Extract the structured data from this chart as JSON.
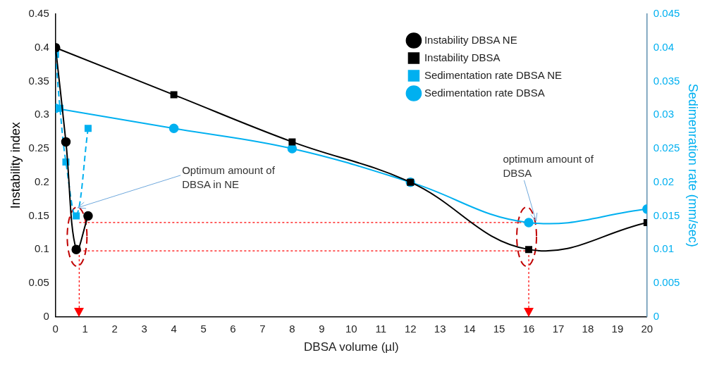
{
  "chart_data": {
    "type": "line",
    "xlabel": "DBSA volume (µl)",
    "ylabel": "Instability index",
    "y2label": "Sedimenration rate (mm/sec)",
    "xlim": [
      0,
      20
    ],
    "xticks": [
      0,
      1,
      2,
      3,
      4,
      5,
      6,
      7,
      8,
      9,
      10,
      11,
      12,
      13,
      14,
      15,
      16,
      17,
      18,
      19,
      20
    ],
    "ylim": [
      0,
      0.45
    ],
    "yticks": [
      0,
      0.05,
      0.1,
      0.15,
      0.2,
      0.25,
      0.3,
      0.35,
      0.4,
      0.45
    ],
    "y2lim": [
      0,
      0.045
    ],
    "y2ticks": [
      0,
      0.005,
      0.01,
      0.015,
      0.02,
      0.025,
      0.03,
      0.035,
      0.04,
      0.045
    ],
    "grid": false,
    "legend": "top right",
    "series": [
      {
        "name": "Instability DBSA NE",
        "color": "#000000",
        "x": [
          0,
          0.35,
          0.7,
          1.1
        ],
        "values": [
          0.4,
          0.26,
          0.1,
          0.15
        ],
        "marker": "circle",
        "line_style": "solid"
      },
      {
        "name": "Instability DBSA",
        "color": "#000000",
        "x": [
          0,
          4,
          8,
          12,
          16,
          20
        ],
        "values": [
          0.4,
          0.33,
          0.26,
          0.2,
          0.1,
          0.14
        ],
        "marker": "square",
        "line_style": "solid"
      },
      {
        "name": "Sedimentation rate DBSA NE",
        "color": "#00b0f0",
        "axis": "y2",
        "x": [
          0,
          0.15,
          0.35,
          0.7,
          1.1
        ],
        "values": [
          0.039,
          0.031,
          0.023,
          0.015,
          0.028
        ],
        "marker": "square",
        "line_style": "dashed"
      },
      {
        "name": "Sedimentation rate DBSA",
        "color": "#00b0f0",
        "axis": "y2",
        "x": [
          0,
          4,
          8,
          12,
          16,
          20
        ],
        "values": [
          0.031,
          0.028,
          0.025,
          0.02,
          0.014,
          0.016
        ],
        "marker": "circle",
        "line_style": "solid"
      }
    ],
    "ref_lines": [
      {
        "axis": "y",
        "value": 0.14,
        "color": "#ff0000",
        "line_style": "dotted"
      },
      {
        "axis": "y",
        "value": 0.098,
        "color": "#ff0000",
        "line_style": "dotted"
      },
      {
        "axis": "x",
        "value": 0.8,
        "color": "#ff0000",
        "line_style": "dotted"
      },
      {
        "axis": "x",
        "value": 16,
        "color": "#ff0000",
        "line_style": "dotted"
      }
    ],
    "annotations": [
      {
        "text": "Optimum amount of DBSA in NE",
        "x": 0.7,
        "y": 0.16
      },
      {
        "text": "optimum amount of DBSA",
        "x": 16.2,
        "y": 0.14
      }
    ]
  }
}
